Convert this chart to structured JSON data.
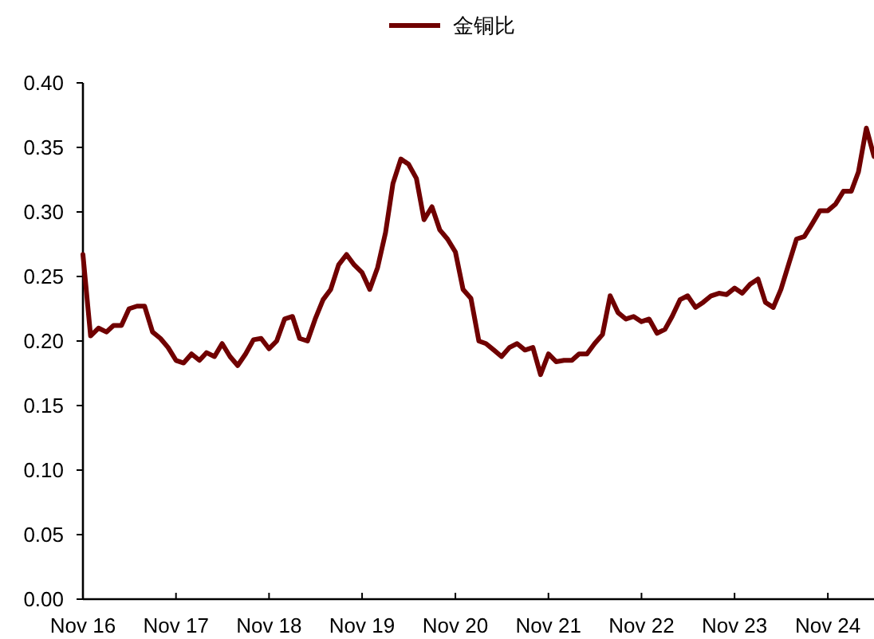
{
  "chart_data": {
    "type": "line",
    "legend": "top",
    "x": [
      "2016-11",
      "2016-12",
      "2017-01",
      "2017-02",
      "2017-03",
      "2017-04",
      "2017-05",
      "2017-06",
      "2017-07",
      "2017-08",
      "2017-09",
      "2017-10",
      "2017-11",
      "2017-12",
      "2018-01",
      "2018-02",
      "2018-03",
      "2018-04",
      "2018-05",
      "2018-06",
      "2018-07",
      "2018-08",
      "2018-09",
      "2018-10",
      "2018-11",
      "2018-12",
      "2019-01",
      "2019-02",
      "2019-03",
      "2019-04",
      "2019-05",
      "2019-06",
      "2019-07",
      "2019-08",
      "2019-09",
      "2019-10",
      "2019-11",
      "2019-12",
      "2020-01",
      "2020-02",
      "2020-03",
      "2020-04",
      "2020-05",
      "2020-06",
      "2020-07",
      "2020-08",
      "2020-09",
      "2020-10",
      "2020-11",
      "2020-12",
      "2021-01",
      "2021-02",
      "2021-03",
      "2021-04",
      "2021-05",
      "2021-06",
      "2021-07",
      "2021-08",
      "2021-09",
      "2021-10",
      "2021-11",
      "2021-12",
      "2022-01",
      "2022-02",
      "2022-03",
      "2022-04",
      "2022-05",
      "2022-06",
      "2022-07",
      "2022-08",
      "2022-09",
      "2022-10",
      "2022-11",
      "2022-12",
      "2023-01",
      "2023-02",
      "2023-03",
      "2023-04",
      "2023-05",
      "2023-06",
      "2023-07",
      "2023-08",
      "2023-09",
      "2023-10",
      "2023-11",
      "2023-12",
      "2024-01",
      "2024-02",
      "2024-03",
      "2024-04",
      "2024-05",
      "2024-06",
      "2024-07",
      "2024-08",
      "2024-09",
      "2024-10",
      "2024-11",
      "2024-12",
      "2025-01",
      "2025-02",
      "2025-03",
      "2025-04",
      "2025-05"
    ],
    "series": [
      {
        "name": "金铜比",
        "color": "#700000",
        "values": [
          0.267,
          0.204,
          0.21,
          0.207,
          0.212,
          0.212,
          0.225,
          0.227,
          0.227,
          0.207,
          0.202,
          0.195,
          0.185,
          0.183,
          0.19,
          0.185,
          0.191,
          0.188,
          0.198,
          0.188,
          0.181,
          0.19,
          0.201,
          0.202,
          0.194,
          0.2,
          0.217,
          0.219,
          0.202,
          0.2,
          0.217,
          0.232,
          0.24,
          0.259,
          0.267,
          0.259,
          0.253,
          0.24,
          0.257,
          0.284,
          0.322,
          0.341,
          0.337,
          0.326,
          0.294,
          0.304,
          0.286,
          0.279,
          0.269,
          0.24,
          0.233,
          0.2,
          0.198,
          0.193,
          0.188,
          0.195,
          0.198,
          0.193,
          0.195,
          0.174,
          0.19,
          0.184,
          0.185,
          0.185,
          0.19,
          0.19,
          0.198,
          0.205,
          0.235,
          0.222,
          0.217,
          0.219,
          0.215,
          0.217,
          0.206,
          0.209,
          0.219,
          0.232,
          0.235,
          0.226,
          0.23,
          0.235,
          0.237,
          0.236,
          0.241,
          0.237,
          0.244,
          0.248,
          0.23,
          0.226,
          0.24,
          0.26,
          0.279,
          0.281,
          0.291,
          0.301,
          0.301,
          0.306,
          0.316,
          0.316,
          0.331,
          0.365,
          0.343
        ]
      }
    ],
    "xlim": [
      "2016-11",
      "2025-05"
    ],
    "xticks": [
      {
        "value": "2016-11",
        "label": "Nov 16"
      },
      {
        "value": "2017-11",
        "label": "Nov 17"
      },
      {
        "value": "2018-11",
        "label": "Nov 18"
      },
      {
        "value": "2019-11",
        "label": "Nov 19"
      },
      {
        "value": "2020-11",
        "label": "Nov 20"
      },
      {
        "value": "2021-11",
        "label": "Nov 21"
      },
      {
        "value": "2022-11",
        "label": "Nov 22"
      },
      {
        "value": "2023-11",
        "label": "Nov 23"
      },
      {
        "value": "2024-11",
        "label": "Nov 24"
      }
    ],
    "ylim": [
      0,
      0.4
    ],
    "yticks": [
      {
        "value": 0,
        "label": "0.00"
      },
      {
        "value": 0.05,
        "label": "0.05"
      },
      {
        "value": 0.1,
        "label": "0.10"
      },
      {
        "value": 0.15,
        "label": "0.15"
      },
      {
        "value": 0.2,
        "label": "0.20"
      },
      {
        "value": 0.25,
        "label": "0.25"
      },
      {
        "value": 0.3,
        "label": "0.30"
      },
      {
        "value": 0.35,
        "label": "0.35"
      },
      {
        "value": 0.4,
        "label": "0.40"
      }
    ]
  }
}
